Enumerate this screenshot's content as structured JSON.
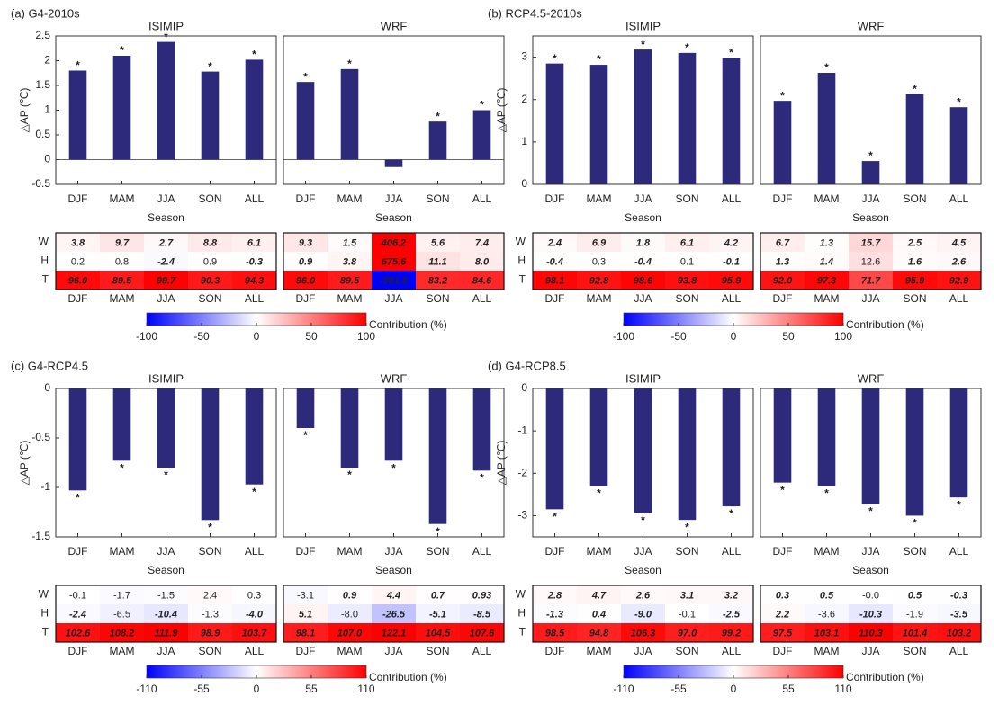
{
  "chart_data": [
    {
      "type": "bar",
      "title": "(a) G4-2010s",
      "ylabel": "△AP (℃)",
      "xlabel": "Season",
      "color": "#2d2a7c",
      "categories": [
        "DJF",
        "MAM",
        "JJA",
        "SON",
        "ALL"
      ],
      "ylim": [
        -0.5,
        2.5
      ],
      "yticks": [
        -0.5,
        0,
        0.5,
        1,
        1.5,
        2,
        2.5
      ],
      "significance_marker": "*",
      "rows": [
        "W",
        "H",
        "T"
      ],
      "subplots": [
        {
          "title": "ISIMIP",
          "values": [
            1.8,
            2.1,
            2.38,
            1.78,
            2.02
          ],
          "significant": [
            true,
            true,
            true,
            true,
            true
          ],
          "contributions": {
            "values": [
              [
                3.8,
                9.7,
                2.7,
                8.8,
                6.1
              ],
              [
                0.2,
                0.8,
                -2.4,
                0.9,
                -0.3
              ],
              [
                96.0,
                89.5,
                99.7,
                90.3,
                94.3
              ]
            ],
            "value_labels": [
              [
                "3.8",
                "9.7",
                "2.7",
                "8.8",
                "6.1"
              ],
              [
                "0.2",
                "0.8",
                "-2.4",
                "0.9",
                "-0.3"
              ],
              [
                "96.0",
                "89.5",
                "99.7",
                "90.3",
                "94.3"
              ]
            ],
            "bold": [
              [
                true,
                true,
                true,
                true,
                true
              ],
              [
                false,
                false,
                true,
                false,
                true
              ],
              [
                true,
                true,
                true,
                true,
                true
              ]
            ]
          }
        },
        {
          "title": "WRF",
          "values": [
            1.57,
            1.83,
            -0.15,
            0.77,
            1.0
          ],
          "significant": [
            true,
            true,
            false,
            true,
            true
          ],
          "contributions": {
            "values": [
              [
                9.3,
                1.5,
                406.2,
                5.6,
                7.4
              ],
              [
                0.9,
                3.8,
                675.6,
                11.1,
                8.0
              ],
              [
                96.0,
                89.5,
                -981.8,
                83.2,
                84.6
              ]
            ],
            "value_labels": [
              [
                "9.3",
                "1.5",
                "406.2",
                "5.6",
                "7.4"
              ],
              [
                "0.9",
                "3.8",
                "675.6",
                "11.1",
                "8.0"
              ],
              [
                "96.0",
                "89.5",
                "-981.8",
                "83.2",
                "84.6"
              ]
            ],
            "bold": [
              [
                true,
                true,
                true,
                true,
                true
              ],
              [
                true,
                true,
                true,
                true,
                true
              ],
              [
                true,
                true,
                true,
                true,
                true
              ]
            ]
          }
        }
      ],
      "colorbar": {
        "label": "Contribution (%)",
        "lim": [
          -100,
          100
        ],
        "ticks": [
          -100,
          -50,
          0,
          50,
          100
        ]
      }
    },
    {
      "type": "bar",
      "title": "(b) RCP4.5-2010s",
      "ylabel": "△AP (℃)",
      "xlabel": "Season",
      "color": "#2d2a7c",
      "categories": [
        "DJF",
        "MAM",
        "JJA",
        "SON",
        "ALL"
      ],
      "ylim": [
        0,
        3.5
      ],
      "yticks": [
        0,
        1,
        2,
        3
      ],
      "significance_marker": "*",
      "rows": [
        "W",
        "H",
        "T"
      ],
      "subplots": [
        {
          "title": "ISIMIP",
          "values": [
            2.85,
            2.82,
            3.18,
            3.1,
            2.98
          ],
          "significant": [
            true,
            true,
            true,
            true,
            true
          ],
          "contributions": {
            "values": [
              [
                2.4,
                6.9,
                1.8,
                6.1,
                4.2
              ],
              [
                -0.4,
                0.3,
                -0.4,
                0.1,
                -0.1
              ],
              [
                98.1,
                92.8,
                98.6,
                93.8,
                95.9
              ]
            ],
            "value_labels": [
              [
                "2.4",
                "6.9",
                "1.8",
                "6.1",
                "4.2"
              ],
              [
                "-0.4",
                "0.3",
                "-0.4",
                "0.1",
                "-0.1"
              ],
              [
                "98.1",
                "92.8",
                "98.6",
                "93.8",
                "95.9"
              ]
            ],
            "bold": [
              [
                true,
                true,
                true,
                true,
                true
              ],
              [
                true,
                false,
                true,
                false,
                true
              ],
              [
                true,
                true,
                true,
                true,
                true
              ]
            ]
          }
        },
        {
          "title": "WRF",
          "values": [
            1.97,
            2.63,
            0.55,
            2.13,
            1.82
          ],
          "significant": [
            true,
            true,
            true,
            true,
            true
          ],
          "contributions": {
            "values": [
              [
                6.7,
                1.3,
                15.7,
                2.5,
                4.5
              ],
              [
                1.3,
                1.4,
                12.6,
                1.6,
                2.6
              ],
              [
                92.0,
                97.3,
                71.7,
                95.9,
                92.9
              ]
            ],
            "value_labels": [
              [
                "6.7",
                "1.3",
                "15.7",
                "2.5",
                "4.5"
              ],
              [
                "1.3",
                "1.4",
                "12.6",
                "1.6",
                "2.6"
              ],
              [
                "92.0",
                "97.3",
                "71.7",
                "95.9",
                "92.9"
              ]
            ],
            "bold": [
              [
                true,
                true,
                true,
                true,
                true
              ],
              [
                true,
                true,
                false,
                true,
                true
              ],
              [
                true,
                true,
                true,
                true,
                true
              ]
            ]
          }
        }
      ],
      "colorbar": {
        "label": "Contribution (%)",
        "lim": [
          -100,
          100
        ],
        "ticks": [
          -100,
          -50,
          0,
          50,
          100
        ]
      }
    },
    {
      "type": "bar",
      "title": "(c) G4-RCP4.5",
      "ylabel": "△AP (℃)",
      "xlabel": "Season",
      "color": "#2d2a7c",
      "categories": [
        "DJF",
        "MAM",
        "JJA",
        "SON",
        "ALL"
      ],
      "ylim": [
        -1.5,
        0
      ],
      "yticks": [
        -1.5,
        -1,
        -0.5,
        0
      ],
      "significance_marker": "*",
      "rows": [
        "W",
        "H",
        "T"
      ],
      "subplots": [
        {
          "title": "ISIMIP",
          "values": [
            -1.03,
            -0.73,
            -0.8,
            -1.33,
            -0.97
          ],
          "significant": [
            true,
            true,
            true,
            true,
            true
          ],
          "contributions": {
            "values": [
              [
                -0.1,
                -1.7,
                -1.5,
                2.4,
                0.3
              ],
              [
                -2.4,
                -6.5,
                -10.4,
                -1.3,
                -4.0
              ],
              [
                102.6,
                108.2,
                111.9,
                98.9,
                103.7
              ]
            ],
            "value_labels": [
              [
                "-0.1",
                "-1.7",
                "-1.5",
                "2.4",
                "0.3"
              ],
              [
                "-2.4",
                "-6.5",
                "-10.4",
                "-1.3",
                "-4.0"
              ],
              [
                "102.6",
                "108.2",
                "111.9",
                "98.9",
                "103.7"
              ]
            ],
            "bold": [
              [
                false,
                false,
                false,
                false,
                false
              ],
              [
                true,
                false,
                true,
                false,
                true
              ],
              [
                true,
                true,
                true,
                true,
                true
              ]
            ]
          }
        },
        {
          "title": "WRF",
          "values": [
            -0.4,
            -0.8,
            -0.73,
            -1.37,
            -0.83
          ],
          "significant": [
            true,
            true,
            true,
            true,
            true
          ],
          "contributions": {
            "values": [
              [
                -3.1,
                0.9,
                4.4,
                0.7,
                0.93
              ],
              [
                5.1,
                -8.0,
                -26.5,
                -5.1,
                -8.5
              ],
              [
                98.1,
                107.0,
                122.1,
                104.5,
                107.6
              ]
            ],
            "value_labels": [
              [
                "-3.1",
                "0.9",
                "4.4",
                "0.7",
                "0.93"
              ],
              [
                "5.1",
                "-8.0",
                "-26.5",
                "-5.1",
                "-8.5"
              ],
              [
                "98.1",
                "107.0",
                "122.1",
                "104.5",
                "107.6"
              ]
            ],
            "bold": [
              [
                false,
                true,
                true,
                true,
                true
              ],
              [
                true,
                false,
                true,
                true,
                true
              ],
              [
                true,
                true,
                true,
                true,
                true
              ]
            ]
          }
        }
      ],
      "colorbar": {
        "label": "Contribution (%)",
        "lim": [
          -110,
          110
        ],
        "ticks": [
          -110,
          -55,
          0,
          55,
          110
        ]
      }
    },
    {
      "type": "bar",
      "title": "(d) G4-RCP8.5",
      "ylabel": "△AP (℃)",
      "xlabel": "Season",
      "color": "#2d2a7c",
      "categories": [
        "DJF",
        "MAM",
        "JJA",
        "SON",
        "ALL"
      ],
      "ylim": [
        -3.5,
        0
      ],
      "yticks": [
        -3,
        -2,
        -1,
        0
      ],
      "significance_marker": "*",
      "rows": [
        "W",
        "H",
        "T"
      ],
      "subplots": [
        {
          "title": "ISIMIP",
          "values": [
            -2.85,
            -2.3,
            -2.93,
            -3.1,
            -2.78
          ],
          "significant": [
            true,
            true,
            true,
            true,
            true
          ],
          "contributions": {
            "values": [
              [
                2.8,
                4.7,
                2.6,
                3.1,
                3.2
              ],
              [
                -1.3,
                0.4,
                -9.0,
                -0.1,
                -2.5
              ],
              [
                98.5,
                94.8,
                106.3,
                97.0,
                99.2
              ]
            ],
            "value_labels": [
              [
                "2.8",
                "4.7",
                "2.6",
                "3.1",
                "3.2"
              ],
              [
                "-1.3",
                "0.4",
                "-9.0",
                "-0.1",
                "-2.5"
              ],
              [
                "98.5",
                "94.8",
                "106.3",
                "97.0",
                "99.2"
              ]
            ],
            "bold": [
              [
                true,
                true,
                true,
                true,
                true
              ],
              [
                true,
                true,
                true,
                false,
                true
              ],
              [
                true,
                true,
                true,
                true,
                true
              ]
            ]
          }
        },
        {
          "title": "WRF",
          "values": [
            -2.22,
            -2.3,
            -2.72,
            -3.0,
            -2.57
          ],
          "significant": [
            true,
            true,
            true,
            true,
            true
          ],
          "contributions": {
            "values": [
              [
                0.3,
                0.5,
                0,
                0.5,
                -0.3
              ],
              [
                2.2,
                -3.6,
                -10.3,
                -1.9,
                -3.5
              ],
              [
                97.5,
                103.1,
                110.3,
                101.4,
                103.2
              ]
            ],
            "value_labels": [
              [
                "0.3",
                "0.5",
                "-0.0",
                "0.5",
                "-0.3"
              ],
              [
                "2.2",
                "-3.6",
                "-10.3",
                "-1.9",
                "-3.5"
              ],
              [
                "97.5",
                "103.1",
                "110.3",
                "101.4",
                "103.2"
              ]
            ],
            "bold": [
              [
                true,
                true,
                false,
                true,
                true
              ],
              [
                true,
                false,
                true,
                false,
                true
              ],
              [
                true,
                true,
                true,
                true,
                true
              ]
            ]
          }
        }
      ],
      "colorbar": {
        "label": "Contribution (%)",
        "lim": [
          -110,
          110
        ],
        "ticks": [
          -110,
          -55,
          0,
          55,
          110
        ]
      }
    }
  ]
}
